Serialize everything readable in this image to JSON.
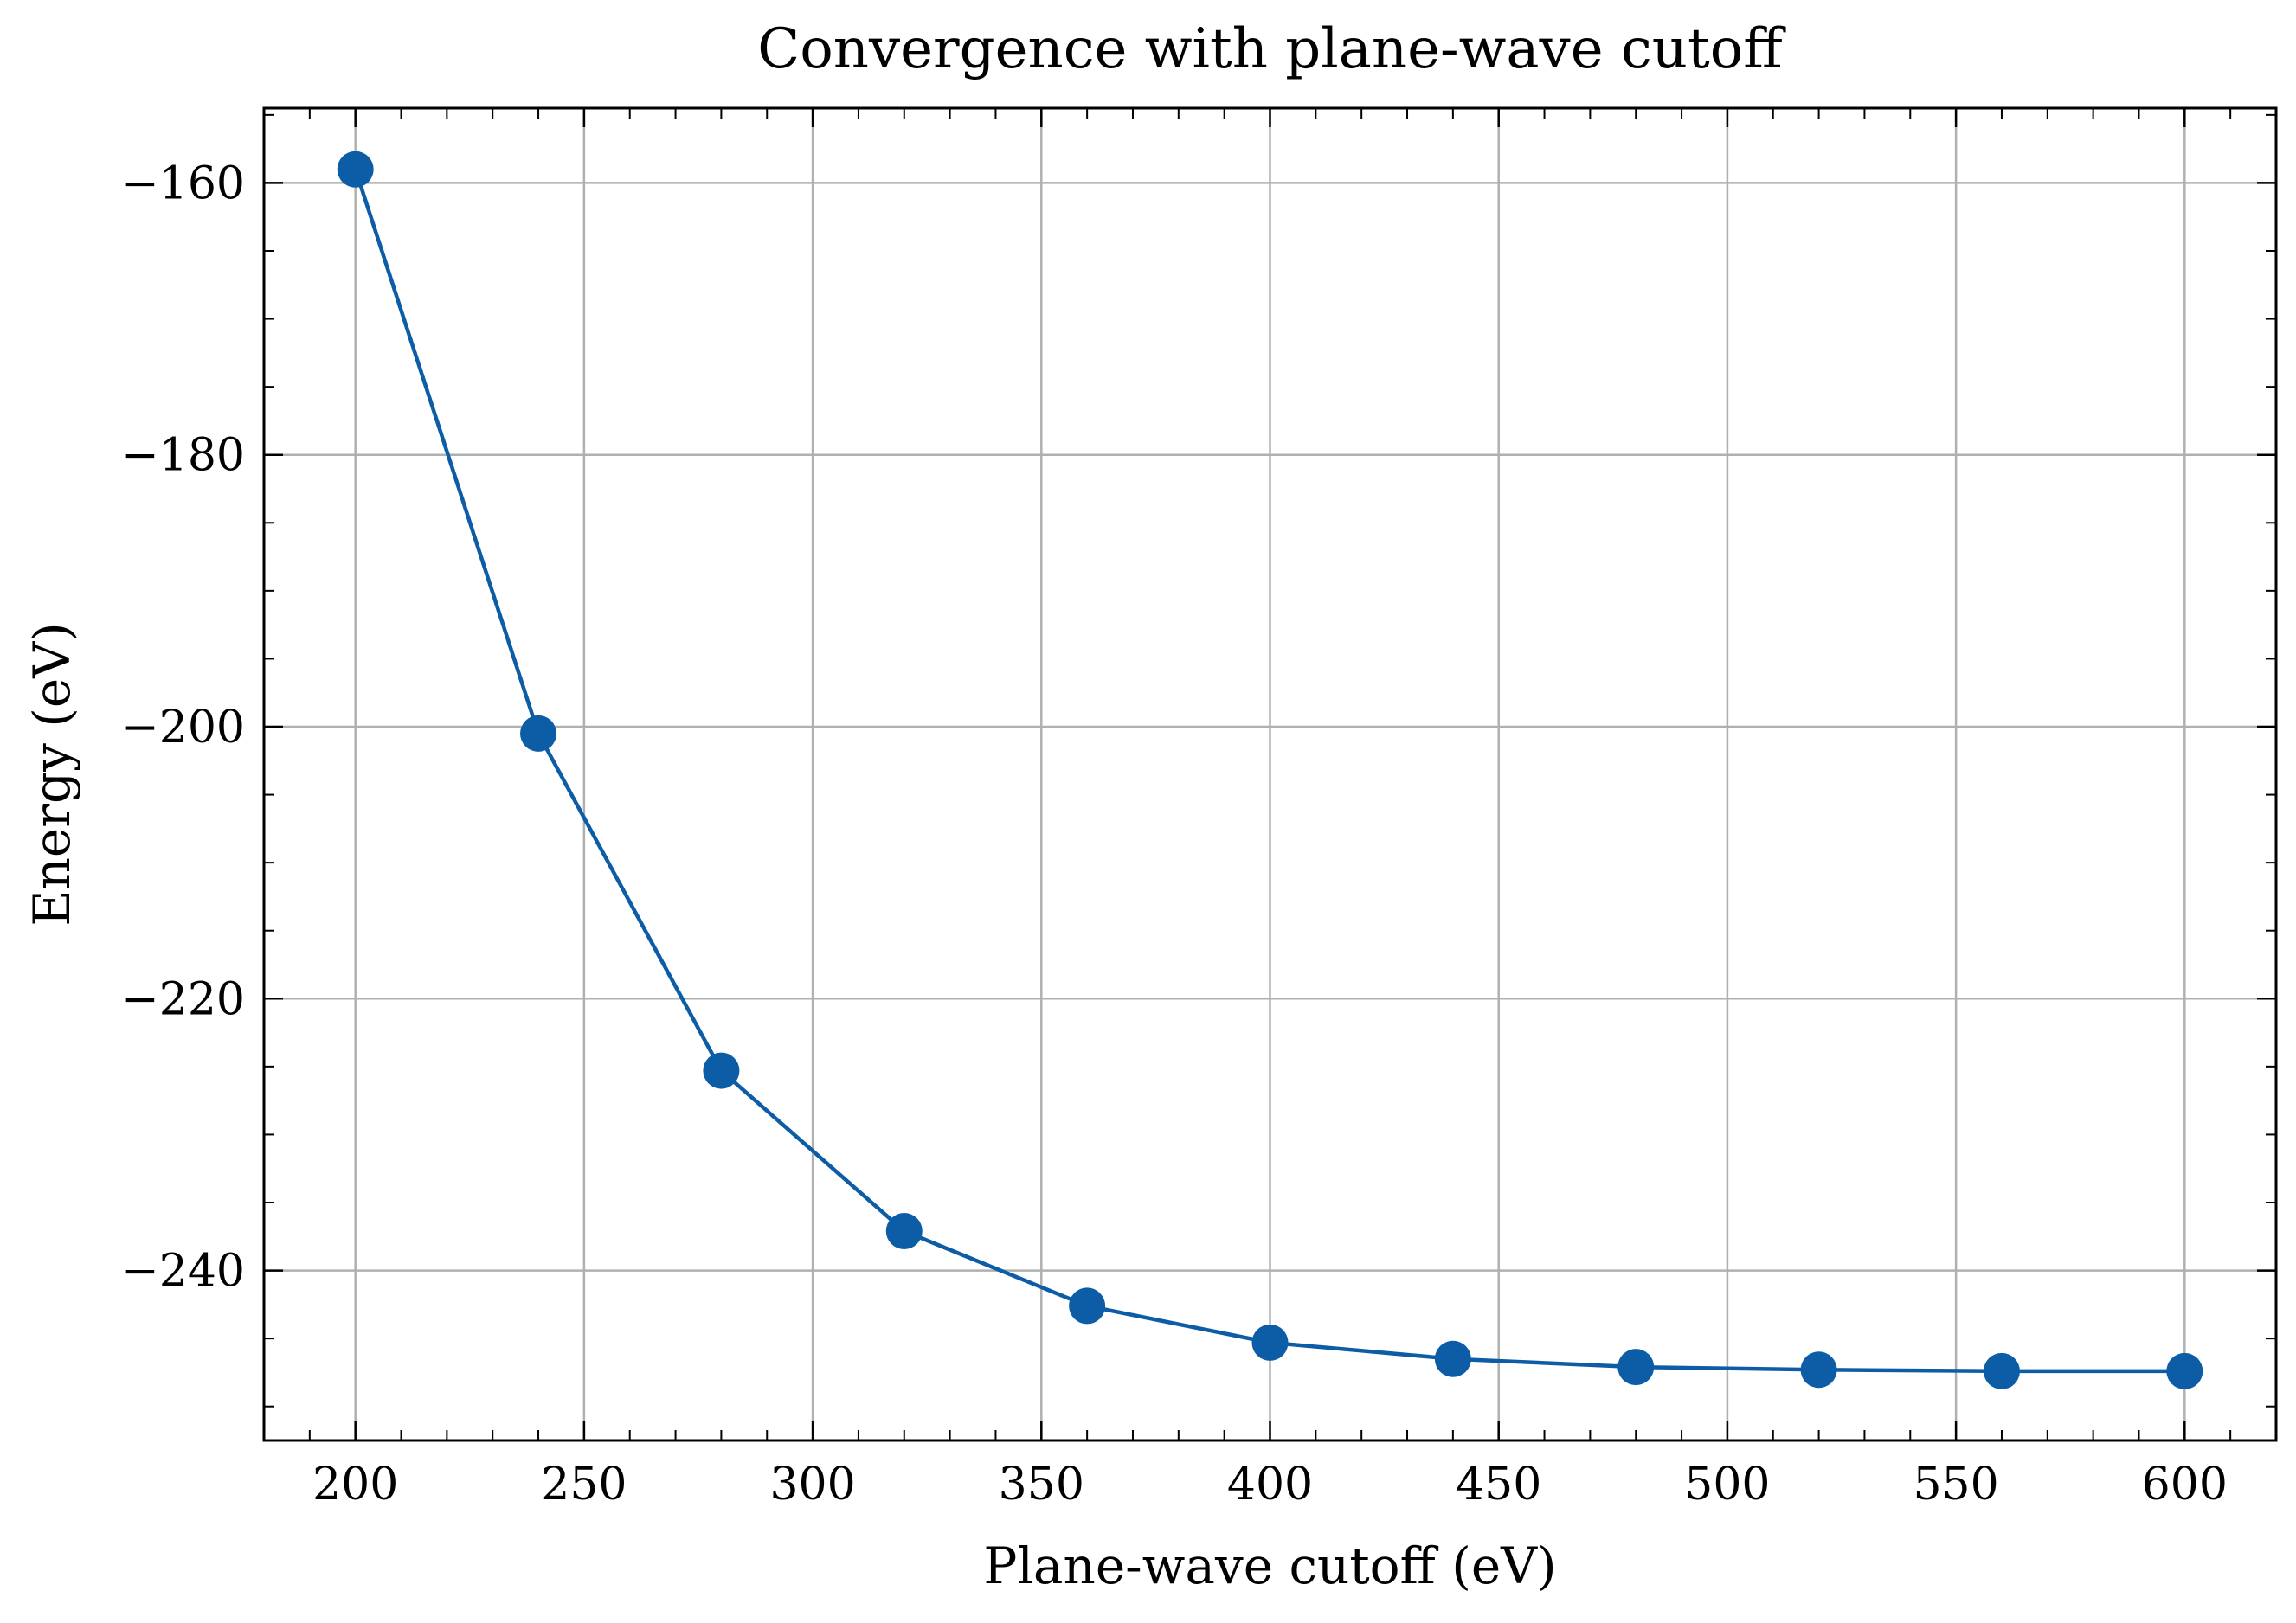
{
  "chart_data": {
    "type": "line",
    "title": "Convergence with plane-wave cutoff",
    "xlabel": "Plane-wave cutoff (eV)",
    "ylabel": "Energy (eV)",
    "xlim": [
      180,
      620
    ],
    "ylim": [
      -252.5,
      -154.5
    ],
    "xticks": [
      200,
      250,
      300,
      350,
      400,
      450,
      500,
      550,
      600
    ],
    "yticks": [
      -160,
      -180,
      -200,
      -220,
      -240
    ],
    "x_minor_step": 10,
    "y_minor_step": 5,
    "grid": true,
    "legend": "none",
    "series": [
      {
        "color": "#0c5da5",
        "marker": "circle",
        "x": [
          200,
          240,
          280,
          320,
          360,
          400,
          440,
          480,
          520,
          560,
          600
        ],
        "y": [
          -159.0,
          -200.5,
          -225.3,
          -237.1,
          -242.6,
          -245.3,
          -246.5,
          -247.1,
          -247.3,
          -247.4,
          -247.4
        ]
      }
    ]
  }
}
